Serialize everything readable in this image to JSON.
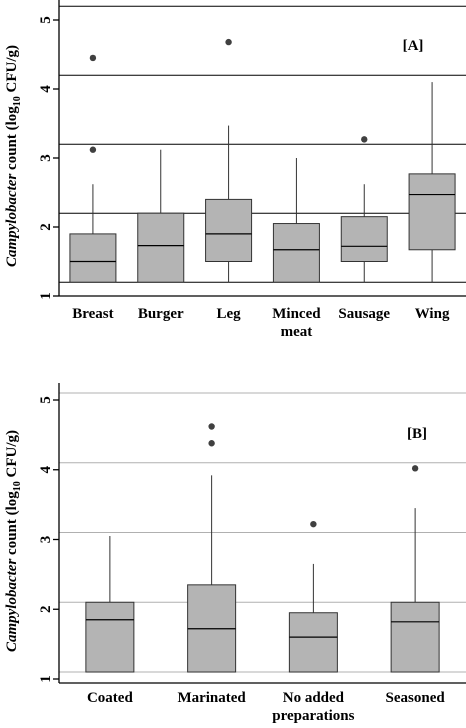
{
  "colors": {
    "box_fill": "#b4b4b4",
    "grid_A": "#000000",
    "grid_B": "#b0b0b0",
    "outlier": "#404040"
  },
  "chart_data": [
    {
      "type": "boxplot",
      "panel_label": "[A]",
      "ylabel": {
        "italic": "Campylobacter",
        "pre": " count (log",
        "sub": "10",
        "post": " CFU/g)"
      },
      "ylim": [
        1,
        5.3
      ],
      "yticks": [
        "1",
        "2",
        "3",
        "4",
        "5"
      ],
      "gridlines_y": [
        1.2,
        2.2,
        3.2,
        4.2,
        5.2
      ],
      "grid": true,
      "categories": [
        "Breast",
        "Burger",
        "Leg",
        "Minced meat",
        "Sausage",
        "Wing"
      ],
      "category_lines": [
        [
          "Breast"
        ],
        [
          "Burger"
        ],
        [
          "Leg"
        ],
        [
          "Minced",
          "meat"
        ],
        [
          "Sausage"
        ],
        [
          "Wing"
        ]
      ],
      "boxes": [
        {
          "min": 1.2,
          "q1": 1.2,
          "median": 1.5,
          "q3": 1.9,
          "max": 2.62,
          "outliers": [
            3.12,
            4.45
          ]
        },
        {
          "min": 1.2,
          "q1": 1.2,
          "median": 1.73,
          "q3": 2.2,
          "max": 3.12,
          "outliers": []
        },
        {
          "min": 1.2,
          "q1": 1.5,
          "median": 1.9,
          "q3": 2.4,
          "max": 3.47,
          "outliers": [
            4.68
          ]
        },
        {
          "min": 1.2,
          "q1": 1.2,
          "median": 1.67,
          "q3": 2.05,
          "max": 3.0,
          "outliers": []
        },
        {
          "min": 1.2,
          "q1": 1.5,
          "median": 1.72,
          "q3": 2.15,
          "max": 2.62,
          "outliers": [
            3.27
          ]
        },
        {
          "min": 1.2,
          "q1": 1.67,
          "median": 2.47,
          "q3": 2.77,
          "max": 4.1,
          "outliers": []
        }
      ]
    },
    {
      "type": "boxplot",
      "panel_label": "[B]",
      "ylabel": {
        "italic": "Campylobacter",
        "pre": " count (log",
        "sub": "10",
        "post": " CFU/g)"
      },
      "ylim": [
        1,
        5.3
      ],
      "yticks": [
        "1",
        "2",
        "3",
        "4",
        "5"
      ],
      "gridlines_y": [
        1.1,
        2.1,
        3.1,
        4.1,
        5.1
      ],
      "grid": true,
      "categories": [
        "Coated",
        "Marinated",
        "No added preparations",
        "Seasoned"
      ],
      "category_lines": [
        [
          "Coated"
        ],
        [
          "Marinated"
        ],
        [
          "No added",
          "preparations"
        ],
        [
          "Seasoned"
        ]
      ],
      "boxes": [
        {
          "min": 1.1,
          "q1": 1.1,
          "median": 1.85,
          "q3": 2.1,
          "max": 3.05,
          "outliers": []
        },
        {
          "min": 1.1,
          "q1": 1.1,
          "median": 1.72,
          "q3": 2.35,
          "max": 3.92,
          "outliers": [
            4.38,
            4.62
          ]
        },
        {
          "min": 1.1,
          "q1": 1.1,
          "median": 1.6,
          "q3": 1.95,
          "max": 2.65,
          "outliers": [
            3.22
          ]
        },
        {
          "min": 1.1,
          "q1": 1.1,
          "median": 1.82,
          "q3": 2.1,
          "max": 3.45,
          "outliers": [
            4.02
          ]
        }
      ]
    }
  ]
}
